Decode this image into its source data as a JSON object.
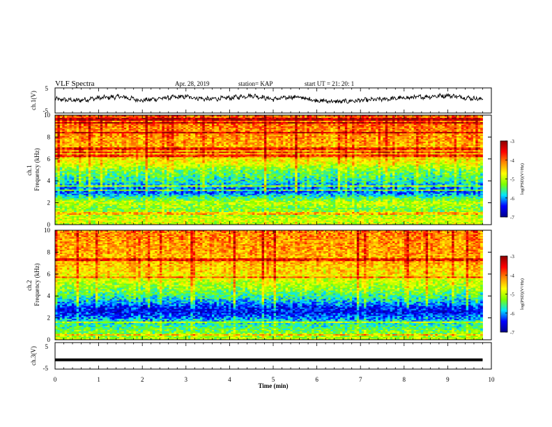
{
  "header": {
    "title": "VLF Spectra",
    "date": "Apr. 28, 2019",
    "station": "station= KAP",
    "start": "start  UT =   21: 20: 1"
  },
  "colors": {
    "colormap": [
      "#00008b",
      "#0000ff",
      "#00e5ff",
      "#7cff00",
      "#ffff00",
      "#ff8c00",
      "#ff0000",
      "#8b0000"
    ],
    "trace": "#000000"
  },
  "chart_data": [
    {
      "type": "line",
      "ylabel": "ch.1(V)",
      "ylim": [
        -5,
        5
      ],
      "yticks": [
        "5",
        "-5"
      ],
      "xlim": [
        0,
        10
      ],
      "x": [
        0,
        0.5,
        1.0,
        1.5,
        2.0,
        2.5,
        3.0,
        3.5,
        4.0,
        4.5,
        5.0,
        5.5,
        6.0,
        6.5,
        7.0,
        7.5,
        8.0,
        8.5,
        9.0,
        9.5,
        9.8
      ],
      "values": [
        0.5,
        0.0,
        1.0,
        1.5,
        0.0,
        1.0,
        1.5,
        0.5,
        1.0,
        2.0,
        0.5,
        1.5,
        0.0,
        -0.5,
        0.0,
        0.5,
        1.0,
        1.5,
        2.0,
        1.0,
        0.5
      ]
    },
    {
      "type": "heatmap",
      "ylabel": "ch.1\nFrequency (kHz)",
      "ylim": [
        0,
        10
      ],
      "yticks": [
        "0",
        "2",
        "4",
        "6",
        "8",
        "10"
      ],
      "xlim": [
        0,
        10
      ],
      "data_end_min": 9.8,
      "profile_freq_khz": [
        0,
        0.5,
        1.0,
        1.5,
        2.0,
        2.5,
        3.0,
        3.5,
        4.0,
        4.5,
        5.0,
        5.5,
        6.0,
        7.0,
        8.0,
        9.0,
        10.0
      ],
      "profile_log_psd": [
        -5.0,
        -4.9,
        -5.2,
        -5.3,
        -5.0,
        -5.6,
        -6.3,
        -6.0,
        -5.7,
        -5.5,
        -5.3,
        -4.9,
        -4.6,
        -4.4,
        -4.2,
        -4.1,
        -4.0
      ],
      "colorbar": {
        "label": "log(PSD)(V²/Hz)",
        "range": [
          -7,
          -3
        ],
        "ticks": [
          "-3",
          "-4",
          "-5",
          "-6",
          "-7"
        ]
      }
    },
    {
      "type": "heatmap",
      "ylabel": "ch.2\nFrequency (kHz)",
      "ylim": [
        0,
        10
      ],
      "yticks": [
        "0",
        "2",
        "4",
        "6",
        "8",
        "10"
      ],
      "xlim": [
        0,
        10
      ],
      "data_end_min": 9.8,
      "profile_freq_khz": [
        0,
        0.5,
        1.0,
        1.5,
        2.0,
        2.5,
        3.0,
        3.5,
        4.0,
        4.5,
        5.0,
        5.5,
        6.0,
        7.0,
        8.0,
        9.0,
        10.0
      ],
      "profile_log_psd": [
        -5.0,
        -5.2,
        -5.5,
        -5.7,
        -6.1,
        -6.5,
        -6.4,
        -5.9,
        -5.6,
        -5.3,
        -5.1,
        -4.9,
        -4.6,
        -4.4,
        -4.3,
        -4.2,
        -4.1
      ],
      "colorbar": {
        "label": "log(PSD)(V²/Hz)",
        "range": [
          -7,
          -3
        ],
        "ticks": [
          "-3",
          "-4",
          "-5",
          "-6",
          "-7"
        ]
      }
    },
    {
      "type": "line",
      "ylabel": "ch.3(V)",
      "ylim": [
        -5,
        5
      ],
      "yticks": [
        "5",
        "-5"
      ],
      "xlim": [
        0,
        10
      ],
      "x": [
        0,
        9.8
      ],
      "values": [
        -1.5,
        -1.5
      ],
      "xlabel": "Time (min)",
      "xticks": [
        "0",
        "1",
        "2",
        "3",
        "4",
        "5",
        "6",
        "7",
        "8",
        "9",
        "10"
      ]
    }
  ]
}
